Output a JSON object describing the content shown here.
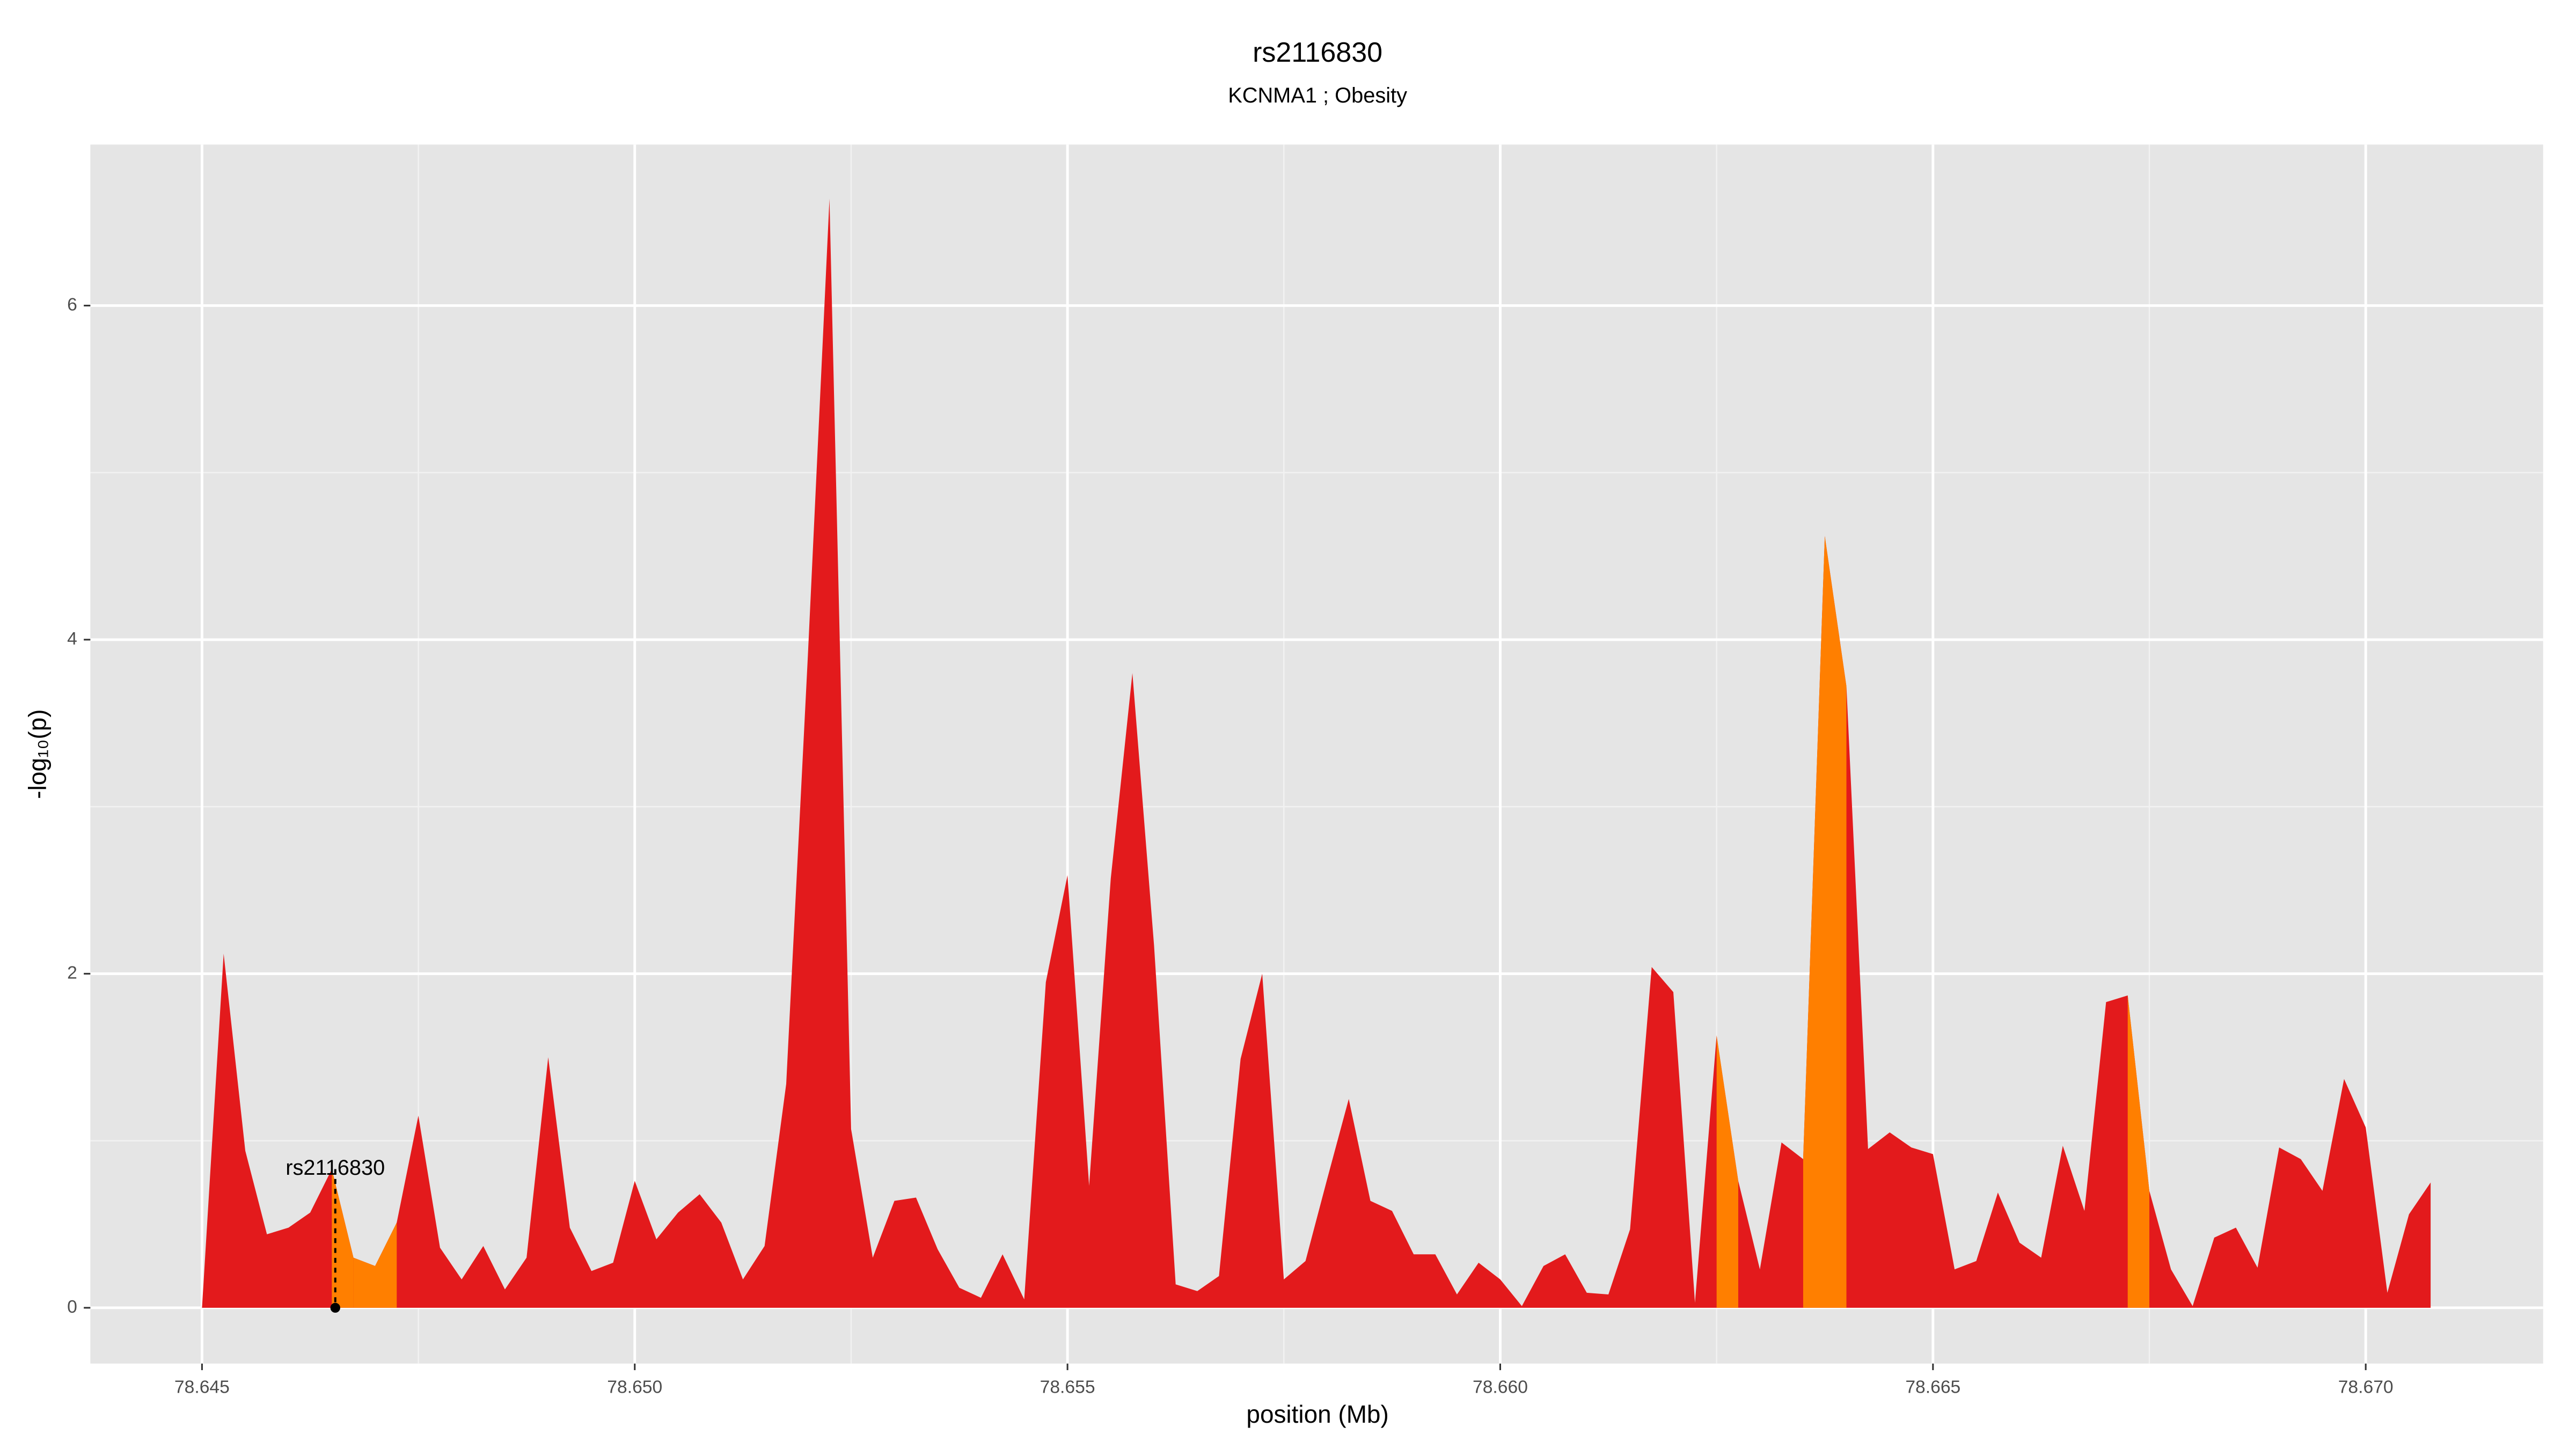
{
  "chart_data": {
    "type": "area",
    "title": "rs2116830",
    "subtitle": "KCNMA1 ; Obesity",
    "x_label": "position (Mb)",
    "y_label": "-log₁₀(p)",
    "x": [
      78.645,
      78.64525,
      78.6455,
      78.64575,
      78.646,
      78.64625,
      78.6465,
      78.64675,
      78.647,
      78.64725,
      78.6475,
      78.64775,
      78.648,
      78.64825,
      78.6485,
      78.64875,
      78.649,
      78.64925,
      78.6495,
      78.64975,
      78.65,
      78.65025,
      78.6505,
      78.65075,
      78.651,
      78.65125,
      78.6515,
      78.65175,
      78.652,
      78.65225,
      78.6525,
      78.65275,
      78.653,
      78.65325,
      78.6535,
      78.65375,
      78.654,
      78.65425,
      78.6545,
      78.65475,
      78.655,
      78.65525,
      78.6555,
      78.65575,
      78.656,
      78.65625,
      78.6565,
      78.65675,
      78.657,
      78.65725,
      78.6575,
      78.65775,
      78.658,
      78.65825,
      78.6585,
      78.65875,
      78.659,
      78.65925,
      78.6595,
      78.65975,
      78.66,
      78.66025,
      78.6605,
      78.66075,
      78.661,
      78.66125,
      78.6615,
      78.66175,
      78.662,
      78.66225,
      78.6625,
      78.66275,
      78.663,
      78.66325,
      78.6635,
      78.66375,
      78.664,
      78.66425,
      78.6645,
      78.66475,
      78.665,
      78.66525,
      78.6655,
      78.66575,
      78.666,
      78.66625,
      78.6665,
      78.66675,
      78.667,
      78.66725,
      78.6675,
      78.66775,
      78.668,
      78.66825,
      78.6685,
      78.66875,
      78.669,
      78.66925,
      78.6695,
      78.66975,
      78.67,
      78.67025,
      78.6705,
      78.67075
    ],
    "values": [
      0,
      2.12,
      0.94,
      0.44,
      0.48,
      0.57,
      0.83,
      0.3,
      0.25,
      0.51,
      1.15,
      0.36,
      0.17,
      0.37,
      0.11,
      0.3,
      1.5,
      0.48,
      0.22,
      0.27,
      0.76,
      0.41,
      0.57,
      0.68,
      0.51,
      0.17,
      0.37,
      1.34,
      3.9,
      6.64,
      1.07,
      0.3,
      0.64,
      0.66,
      0.35,
      0.12,
      0.06,
      0.32,
      0.05,
      1.95,
      2.59,
      0.73,
      2.57,
      3.8,
      2.17,
      0.14,
      0.1,
      0.19,
      1.49,
      2.0,
      0.17,
      0.28,
      0.77,
      1.25,
      0.64,
      0.58,
      0.32,
      0.32,
      0.08,
      0.27,
      0.17,
      0.01,
      0.25,
      0.32,
      0.09,
      0.08,
      0.47,
      2.04,
      1.89,
      0.03,
      1.63,
      0.76,
      0.23,
      0.99,
      0.89,
      4.62,
      3.72,
      0.95,
      1.05,
      0.96,
      0.92,
      0.23,
      0.28,
      0.69,
      0.39,
      0.3,
      0.97,
      0.58,
      1.83,
      1.87,
      0.7,
      0.23,
      0.01,
      0.42,
      0.48,
      0.24,
      0.96,
      0.89,
      0.7,
      1.37,
      1.08,
      0.09,
      0.56,
      0.75
    ],
    "color": "#e31a1c",
    "highlight": {
      "color": "#ff7f00",
      "ranges": [
        [
          78.6465,
          78.64675
        ],
        [
          78.64675,
          78.64725
        ],
        [
          78.6625,
          78.66275
        ],
        [
          78.6635,
          78.664
        ],
        [
          78.66725,
          78.6675
        ]
      ]
    },
    "annotation": {
      "text": "rs2116830",
      "x": 78.64654,
      "y": 0.83
    },
    "xlim": [
      78.64371,
      78.67205
    ],
    "ylim": [
      -0.334,
      6.964
    ],
    "xticks": [
      78.645,
      {
        "value": 78.65,
        "label": "78.650"
      },
      78.655,
      {
        "value": 78.66,
        "label": "78.660"
      },
      78.665,
      {
        "value": 78.67,
        "label": "78.670"
      }
    ],
    "yticks": [
      0,
      2,
      4,
      6
    ],
    "x_minor_grid": [
      78.6475,
      78.6525,
      78.6575,
      78.6625,
      78.6675
    ],
    "y_minor_grid": [
      1,
      3,
      5
    ],
    "grid": true
  }
}
